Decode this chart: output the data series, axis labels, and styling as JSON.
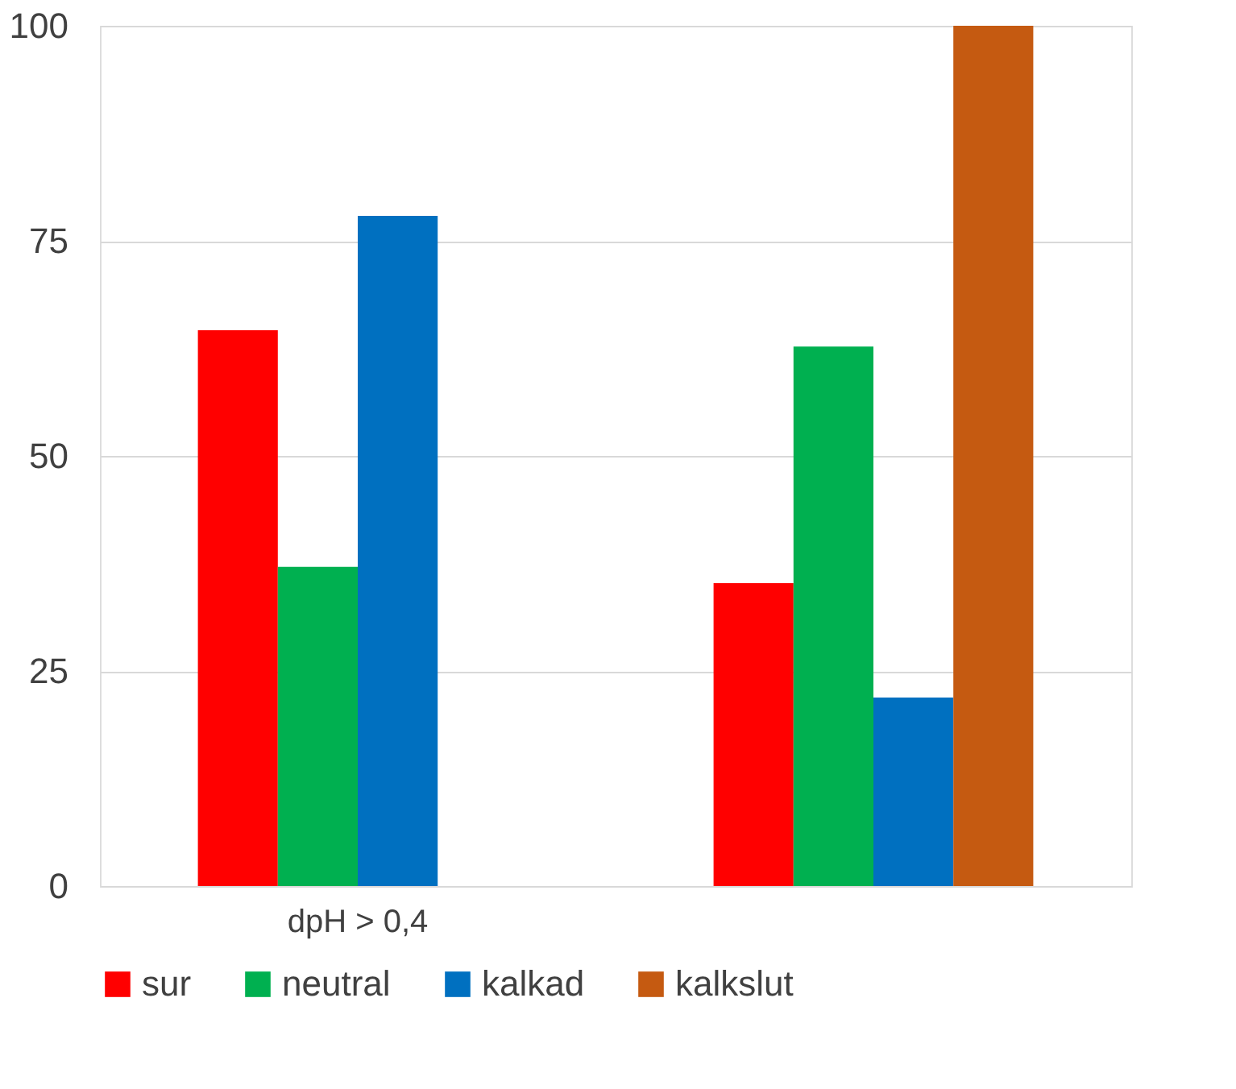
{
  "chart_data": {
    "type": "bar",
    "categories": [
      "dpH > 0,4",
      null
    ],
    "series": [
      {
        "name": "sur",
        "color": "#ff0000",
        "values": [
          64.6,
          35.2
        ]
      },
      {
        "name": "neutral",
        "color": "#00b050",
        "values": [
          37.1,
          62.7
        ]
      },
      {
        "name": "kalkad",
        "color": "#0070c0",
        "values": [
          77.9,
          21.9
        ]
      },
      {
        "name": "kalkslut",
        "color": "#c55a11",
        "values": [
          null,
          100
        ]
      }
    ],
    "ylim": [
      0,
      100
    ],
    "yticks": [
      0,
      25,
      50,
      75,
      100
    ],
    "grid": "y",
    "legend": "bottom"
  }
}
